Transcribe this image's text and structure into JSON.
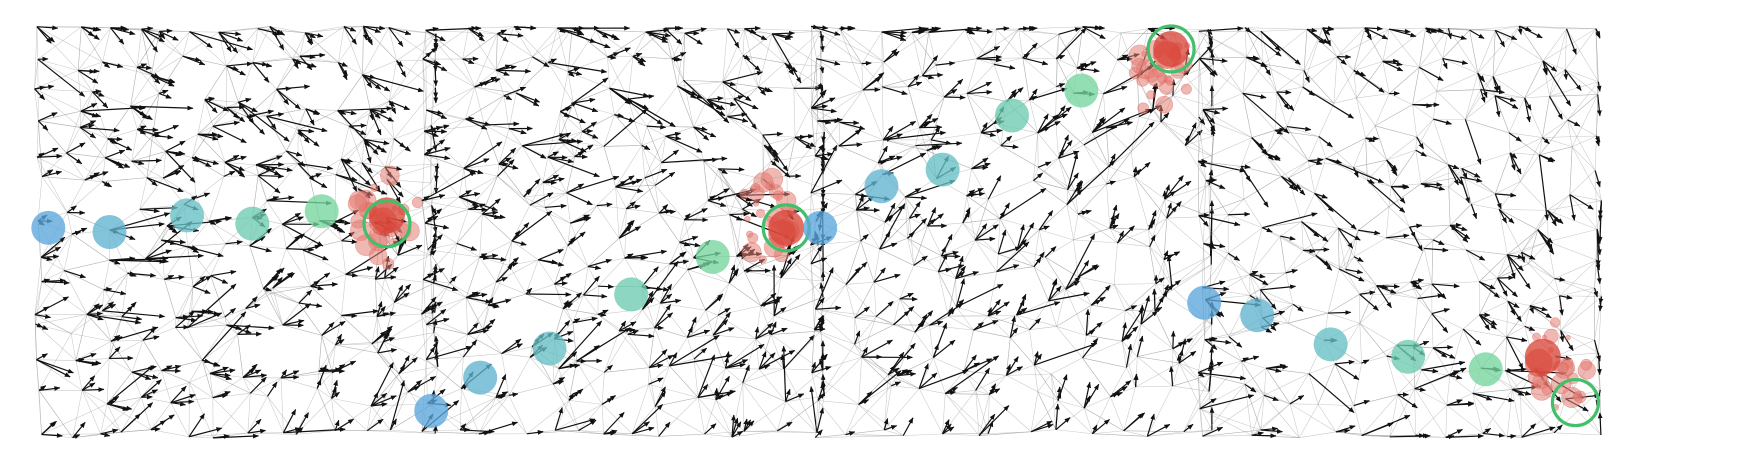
{
  "figure": {
    "description_free": true,
    "panel_count": 4
  },
  "colors": {
    "edge": "#9a9a9a",
    "arrow": "#111111",
    "path_start": "#5aa6dc",
    "path_mid": "#66bfc4",
    "path_end": "#74d59c",
    "target_fill": "#d9483b",
    "target_cloud": "#e27d74",
    "goal_ring": "#43bf6b"
  },
  "panels": [
    {
      "id": "panel-1",
      "seed": 11,
      "flow_angle_deg": 0,
      "arrow_density": 0.72,
      "path": [
        [
          0.04,
          0.49
        ],
        [
          0.19,
          0.5
        ],
        [
          0.38,
          0.46
        ],
        [
          0.54,
          0.48
        ],
        [
          0.71,
          0.45
        ]
      ],
      "goal": [
        0.87,
        0.48
      ],
      "target": [
        0.87,
        0.46
      ],
      "cloud_center": [
        0.87,
        0.47
      ]
    },
    {
      "id": "panel-2",
      "seed": 23,
      "flow_angle_deg": -30,
      "arrow_density": 0.68,
      "path": [
        [
          0.03,
          0.93
        ],
        [
          0.15,
          0.85
        ],
        [
          0.32,
          0.78
        ],
        [
          0.52,
          0.65
        ],
        [
          0.72,
          0.56
        ]
      ],
      "goal": [
        0.9,
        0.49
      ],
      "target": [
        0.9,
        0.49
      ],
      "cloud_center": [
        0.87,
        0.47
      ]
    },
    {
      "id": "panel-3",
      "seed": 37,
      "flow_angle_deg": -28,
      "arrow_density": 0.62,
      "path": [
        [
          0.03,
          0.49
        ],
        [
          0.18,
          0.39
        ],
        [
          0.33,
          0.35
        ],
        [
          0.5,
          0.22
        ],
        [
          0.67,
          0.16
        ]
      ],
      "goal": [
        0.89,
        0.06
      ],
      "target": [
        0.89,
        0.06
      ],
      "cloud_center": [
        0.87,
        0.12
      ]
    },
    {
      "id": "panel-4",
      "seed": 53,
      "flow_angle_deg": 10,
      "arrow_density": 0.45,
      "path": [
        [
          0.02,
          0.67
        ],
        [
          0.15,
          0.7
        ],
        [
          0.33,
          0.77
        ],
        [
          0.52,
          0.8
        ],
        [
          0.71,
          0.83
        ]
      ],
      "goal": [
        0.93,
        0.91
      ],
      "target": [
        0.85,
        0.8
      ],
      "cloud_center": [
        0.9,
        0.82
      ]
    }
  ]
}
